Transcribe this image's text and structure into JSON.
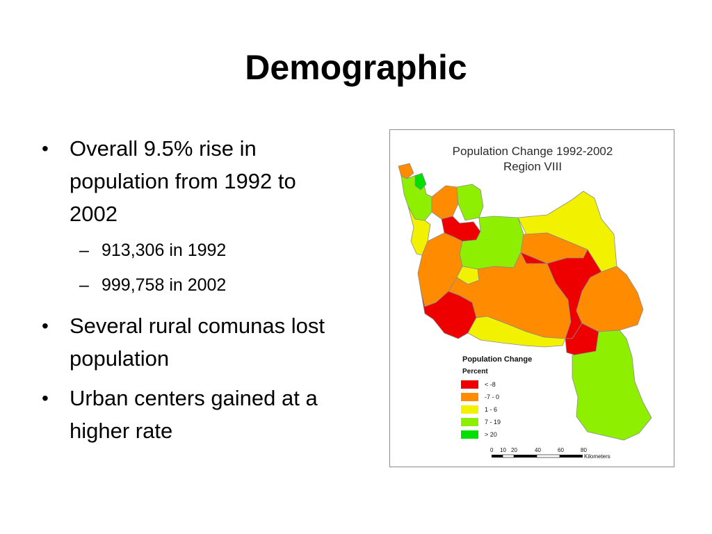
{
  "slide": {
    "title": "Demographic",
    "bullets": [
      {
        "text": "Overall 9.5% rise in population from 1992 to 2002",
        "sub": [
          "913,306 in 1992",
          "999,758 in 2002"
        ]
      },
      {
        "text": "Several rural comunas lost population",
        "sub": []
      },
      {
        "text": "Urban centers gained at a higher rate",
        "sub": []
      }
    ],
    "bullet_marker": "•",
    "sub_marker": "–"
  },
  "map": {
    "title_line1": "Population Change 1992-2002",
    "title_line2": "Region VIII",
    "legend": {
      "title": "Population Change",
      "subtitle": "Percent",
      "classes": [
        {
          "label": "< -8",
          "color": "#ee0000"
        },
        {
          "label": "-7 - 0",
          "color": "#ff8c00"
        },
        {
          "label": "1 - 6",
          "color": "#f2f200"
        },
        {
          "label": "7 - 19",
          "color": "#8ef000"
        },
        {
          "label": "> 20",
          "color": "#00e000"
        }
      ]
    },
    "scale": {
      "ticks": [
        "0",
        "10",
        "20",
        "40",
        "60",
        "80"
      ],
      "unit": "Kilometers"
    }
  }
}
